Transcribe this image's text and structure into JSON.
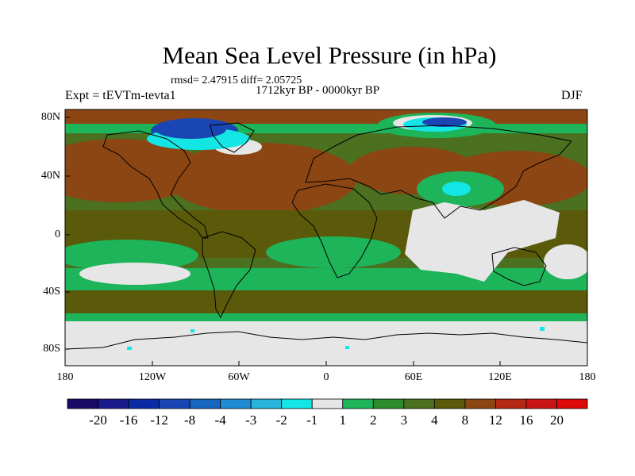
{
  "plot": {
    "title": "Mean Sea Level Pressure (in hPa)",
    "stats": "rmsd= 2.47915  diff= 2.05725",
    "period": "1712kyr BP - 0000kyr BP",
    "experiment": "Expt = tEVTm-tevta1",
    "season": "DJF"
  },
  "axes": {
    "lat_labels": [
      "80N",
      "40N",
      "0",
      "40S",
      "80S"
    ],
    "lon_labels": [
      "180",
      "120W",
      "60W",
      "0",
      "60E",
      "120E",
      "180"
    ]
  },
  "colorbar": {
    "labels": [
      "-20",
      "-16",
      "-12",
      "-8",
      "-4",
      "-3",
      "-2",
      "-1",
      "1",
      "2",
      "3",
      "4",
      "8",
      "12",
      "16",
      "20"
    ],
    "colors": [
      "#1a0a66",
      "#1a1a8c",
      "#0a2aa6",
      "#1a46b4",
      "#1466c0",
      "#1e8cd2",
      "#28b4dc",
      "#14e6e6",
      "#e6e6e6",
      "#1eb45a",
      "#2c8c2c",
      "#4a7020",
      "#5a5a0a",
      "#8c4614",
      "#b42814",
      "#c81414",
      "#dc0a0a"
    ]
  },
  "map_colors": {
    "neutral": "#e6e6e6",
    "light_green": "#1eb45a",
    "mid_green": "#2c8c2c",
    "olive": "#4a7020",
    "dark_olive": "#5a5a0a",
    "brown": "#8c4614",
    "blue": "#1a46b4",
    "light_blue": "#14e6e6",
    "coast": "#000000"
  }
}
